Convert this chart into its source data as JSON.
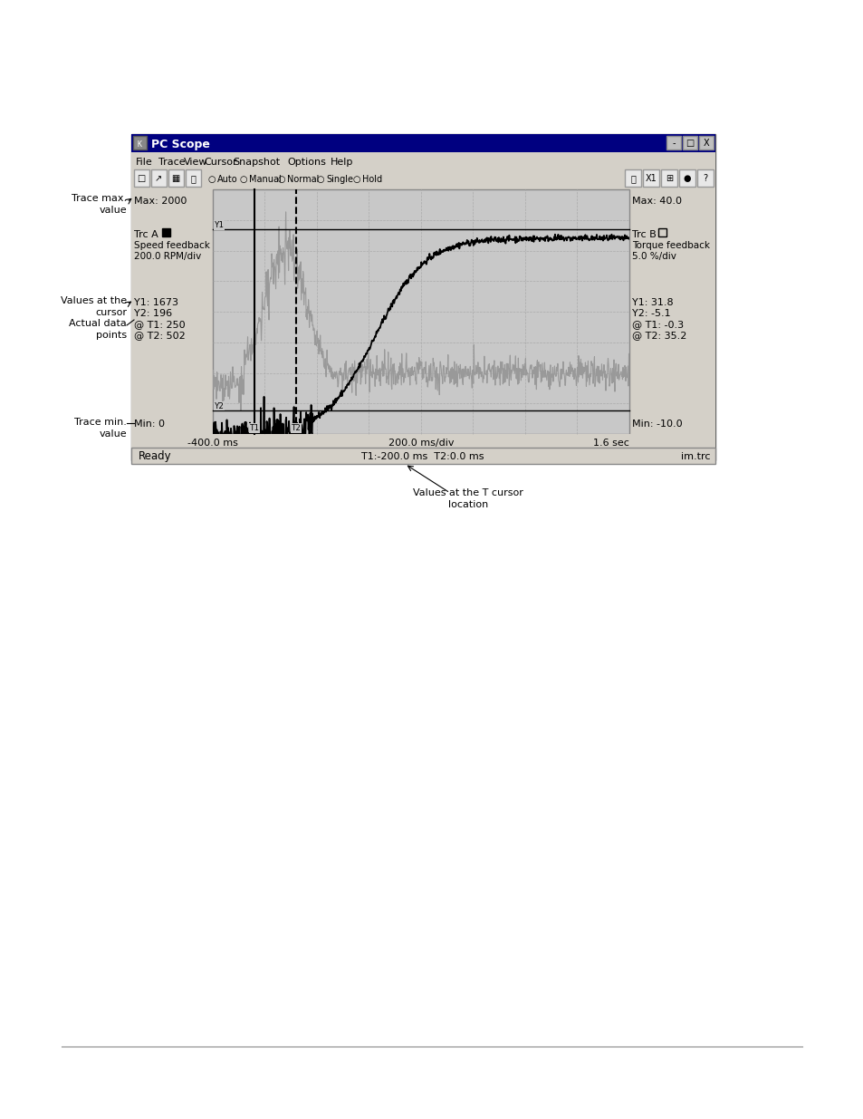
{
  "bg_color": "#ffffff",
  "window_title": "PC Scope",
  "menu_items": [
    "File",
    "Trace",
    "View",
    "Cursor",
    "Snapshot",
    "Options",
    "Help"
  ],
  "radio_items": [
    "Auto",
    "Manual",
    "Normal",
    "Single",
    "Hold"
  ],
  "trc_a_label": "Trc A",
  "trc_b_label": "Trc B",
  "max_left": "Max: 2000",
  "max_right": "Max: 40.0",
  "min_left": "Min: 0",
  "min_right": "Min: -10.0",
  "y1_left": "Y1: 1673",
  "y2_left": "Y2: 196",
  "at_t1_left": "@ T1: 250",
  "at_t2_left": "@ T2: 502",
  "y1_right": "Y1: 31.8",
  "y2_right": "Y2: -5.1",
  "at_t1_right": "@ T1: -0.3",
  "at_t2_right": "@ T2: 35.2",
  "bottom_left": "Ready",
  "bottom_center": "T1:-200.0 ms  T2:0.0 ms",
  "bottom_right": "im.trc",
  "time_left": "-400.0 ms",
  "time_center": "200.0 ms/div",
  "time_right": "1.6 sec",
  "trace_a_color": "#000000",
  "trace_b_color": "#999999",
  "frame_bg": "#d4d0c8",
  "plot_bg": "#c8c8c8",
  "title_bar_color": "#000080",
  "grid_color": "#aaaaaa"
}
